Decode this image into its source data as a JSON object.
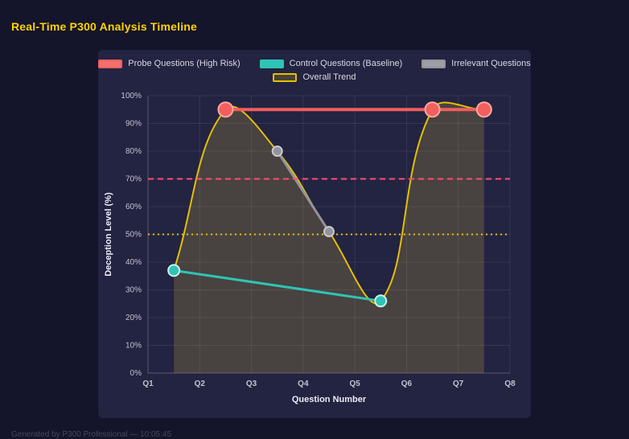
{
  "page": {
    "title": "Real-Time P300 Analysis Timeline",
    "footer": "Generated by P300 Professional — 10:05:45"
  },
  "colors": {
    "background": "#14142b",
    "panel": "#232342",
    "title": "#ffd400",
    "grid": "rgba(255,255,255,0.09)",
    "axis_border": "rgba(255,255,255,0.18)",
    "tick_text": "#c3c3d0",
    "axis_title_text": "#ebebf4"
  },
  "chart_data": {
    "type": "line",
    "title": "Real-Time P300 Analysis Timeline",
    "xlabel": "Question Number",
    "ylabel": "Deception Level (%)",
    "x_tick_labels": [
      "Q1",
      "Q2",
      "Q3",
      "Q4",
      "Q5",
      "Q6",
      "Q7",
      "Q8"
    ],
    "y_tick_labels": [
      "0%",
      "10%",
      "20%",
      "30%",
      "40%",
      "50%",
      "60%",
      "70%",
      "80%",
      "90%",
      "100%"
    ],
    "x_index_range": [
      0,
      7
    ],
    "ylim": [
      0,
      100
    ],
    "grid": true,
    "legend_position": "top",
    "series": [
      {
        "name": "Probe Questions (High Risk)",
        "color": "#f25f5c",
        "legend_fill": "#f2716d",
        "x": [
          1.5,
          5.5,
          6.5
        ],
        "y": [
          95,
          95,
          95
        ],
        "width": 4,
        "point_radius": 9,
        "point_stroke": "#f9a8a3",
        "smooth": false
      },
      {
        "name": "Control Questions (Baseline)",
        "color": "#2ec4b6",
        "legend_fill": "#2ec4b6",
        "x": [
          0.5,
          4.5
        ],
        "y": [
          37,
          26
        ],
        "width": 3,
        "point_radius": 7,
        "point_stroke": "#cdf3ef",
        "smooth": false
      },
      {
        "name": "Irrelevant Questions",
        "color": "#93939c",
        "legend_fill": "#9e9ea6",
        "x": [
          2.5,
          3.5
        ],
        "y": [
          80,
          51
        ],
        "width": 3,
        "point_radius": 6,
        "point_stroke": "#c9c9cf",
        "smooth": false
      },
      {
        "name": "Overall Trend",
        "color": "#e3c000",
        "legend_fill": "rgba(227,192,0,0.2)",
        "x": [
          0.5,
          1.5,
          2.5,
          3.5,
          4.5,
          5.5,
          6.5
        ],
        "y": [
          37,
          95,
          80,
          51,
          26,
          95,
          95
        ],
        "width": 2,
        "point_radius": 0,
        "point_stroke": "#e3c000",
        "smooth": true,
        "area_fill": "rgba(222,190,60,0.2)"
      }
    ],
    "thresholds": [
      {
        "value": 70,
        "color": "#ff4d6d",
        "dash": "7 5",
        "width": 2
      },
      {
        "value": 50,
        "color": "#e3c000",
        "dash": "2 4",
        "width": 2
      }
    ]
  }
}
